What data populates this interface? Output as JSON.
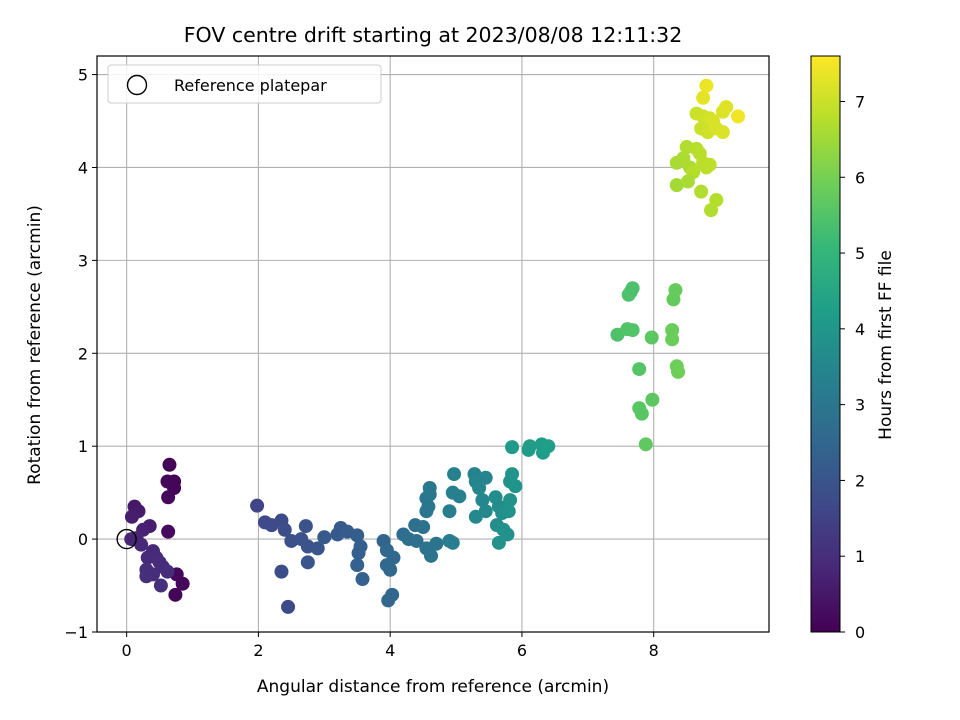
{
  "chart_data": {
    "type": "scatter",
    "title": "FOV centre drift starting at 2023/08/08 12:11:32",
    "xlabel": "Angular distance from reference (arcmin)",
    "ylabel": "Rotation from reference (arcmin)",
    "xlim": [
      -0.45,
      9.75
    ],
    "ylim": [
      -1.0,
      5.2
    ],
    "xticks": [
      0,
      2,
      4,
      6,
      8
    ],
    "yticks": [
      -1,
      0,
      1,
      2,
      3,
      4,
      5
    ],
    "xtick_labels": [
      "0",
      "2",
      "4",
      "6",
      "8"
    ],
    "ytick_labels": [
      "−1",
      "0",
      "1",
      "2",
      "3",
      "4",
      "5"
    ],
    "grid": true,
    "legend": {
      "placement": "top-left",
      "entries": [
        {
          "label": "Reference platepar",
          "marker": "hollow-circle"
        }
      ]
    },
    "reference_point": {
      "x": 0,
      "y": 0
    },
    "colorbar": {
      "label": "Hours from first FF file",
      "colormap": "viridis",
      "range": [
        0,
        7.6
      ],
      "ticks": [
        0,
        1,
        2,
        3,
        4,
        5,
        6,
        7
      ],
      "tick_labels": [
        "0",
        "1",
        "2",
        "3",
        "4",
        "5",
        "6",
        "7"
      ]
    },
    "points": [
      {
        "x": 0.65,
        "y": 0.8,
        "c": 0.05
      },
      {
        "x": 0.72,
        "y": 0.62,
        "c": 0.05
      },
      {
        "x": 0.62,
        "y": 0.62,
        "c": 0.1
      },
      {
        "x": 0.72,
        "y": 0.55,
        "c": 0.1
      },
      {
        "x": 0.63,
        "y": 0.45,
        "c": 0.15
      },
      {
        "x": 0.85,
        "y": -0.48,
        "c": 0.1
      },
      {
        "x": 0.76,
        "y": -0.38,
        "c": 0.15
      },
      {
        "x": 0.74,
        "y": -0.6,
        "c": 0.1
      },
      {
        "x": 0.63,
        "y": 0.08,
        "c": 0.2
      },
      {
        "x": 0.12,
        "y": 0.35,
        "c": 0.5
      },
      {
        "x": 0.18,
        "y": 0.3,
        "c": 0.55
      },
      {
        "x": 0.08,
        "y": 0.24,
        "c": 0.6
      },
      {
        "x": 0.35,
        "y": 0.14,
        "c": 0.6
      },
      {
        "x": 0.25,
        "y": 0.1,
        "c": 0.7
      },
      {
        "x": 0.07,
        "y": 0.0,
        "c": 0.8
      },
      {
        "x": 0.15,
        "y": 0.01,
        "c": 0.8
      },
      {
        "x": 0.22,
        "y": -0.06,
        "c": 0.85
      },
      {
        "x": 0.4,
        "y": -0.13,
        "c": 0.85
      },
      {
        "x": 0.32,
        "y": -0.2,
        "c": 0.9
      },
      {
        "x": 0.45,
        "y": -0.2,
        "c": 0.9
      },
      {
        "x": 0.5,
        "y": -0.25,
        "c": 0.95
      },
      {
        "x": 0.55,
        "y": -0.3,
        "c": 0.95
      },
      {
        "x": 0.3,
        "y": -0.33,
        "c": 1.0
      },
      {
        "x": 0.4,
        "y": -0.38,
        "c": 1.0
      },
      {
        "x": 0.62,
        "y": -0.35,
        "c": 1.0
      },
      {
        "x": 0.3,
        "y": -0.4,
        "c": 1.05
      },
      {
        "x": 0.52,
        "y": -0.5,
        "c": 1.05
      },
      {
        "x": 1.98,
        "y": 0.36,
        "c": 1.6
      },
      {
        "x": 2.1,
        "y": 0.18,
        "c": 1.7
      },
      {
        "x": 2.2,
        "y": 0.15,
        "c": 1.7
      },
      {
        "x": 2.35,
        "y": 0.2,
        "c": 1.75
      },
      {
        "x": 2.4,
        "y": 0.1,
        "c": 1.8
      },
      {
        "x": 2.5,
        "y": -0.02,
        "c": 1.85
      },
      {
        "x": 2.65,
        "y": 0.0,
        "c": 1.9
      },
      {
        "x": 2.72,
        "y": 0.14,
        "c": 1.9
      },
      {
        "x": 2.75,
        "y": -0.08,
        "c": 1.95
      },
      {
        "x": 2.9,
        "y": -0.1,
        "c": 2.0
      },
      {
        "x": 2.75,
        "y": -0.25,
        "c": 2.0
      },
      {
        "x": 2.35,
        "y": -0.35,
        "c": 1.8
      },
      {
        "x": 2.45,
        "y": -0.73,
        "c": 1.75
      },
      {
        "x": 3.0,
        "y": 0.02,
        "c": 2.1
      },
      {
        "x": 3.2,
        "y": 0.05,
        "c": 2.15
      },
      {
        "x": 3.25,
        "y": 0.12,
        "c": 2.15
      },
      {
        "x": 3.35,
        "y": 0.08,
        "c": 2.2
      },
      {
        "x": 3.5,
        "y": 0.04,
        "c": 2.25
      },
      {
        "x": 3.55,
        "y": -0.08,
        "c": 2.3
      },
      {
        "x": 3.52,
        "y": -0.15,
        "c": 2.3
      },
      {
        "x": 3.5,
        "y": -0.28,
        "c": 2.35
      },
      {
        "x": 3.58,
        "y": -0.43,
        "c": 2.35
      },
      {
        "x": 3.9,
        "y": -0.02,
        "c": 2.45
      },
      {
        "x": 3.95,
        "y": -0.12,
        "c": 2.5
      },
      {
        "x": 4.05,
        "y": -0.2,
        "c": 2.5
      },
      {
        "x": 3.95,
        "y": -0.28,
        "c": 2.55
      },
      {
        "x": 4.0,
        "y": -0.33,
        "c": 2.55
      },
      {
        "x": 4.03,
        "y": -0.6,
        "c": 2.5
      },
      {
        "x": 3.97,
        "y": -0.66,
        "c": 2.5
      },
      {
        "x": 4.2,
        "y": 0.05,
        "c": 2.7
      },
      {
        "x": 4.28,
        "y": 0.0,
        "c": 2.75
      },
      {
        "x": 4.4,
        "y": -0.02,
        "c": 2.8
      },
      {
        "x": 4.38,
        "y": 0.15,
        "c": 2.8
      },
      {
        "x": 4.5,
        "y": 0.13,
        "c": 2.85
      },
      {
        "x": 4.55,
        "y": -0.1,
        "c": 2.85
      },
      {
        "x": 4.62,
        "y": -0.18,
        "c": 2.9
      },
      {
        "x": 4.7,
        "y": -0.05,
        "c": 2.9
      },
      {
        "x": 4.55,
        "y": 0.3,
        "c": 2.95
      },
      {
        "x": 4.58,
        "y": 0.35,
        "c": 3.0
      },
      {
        "x": 4.55,
        "y": 0.44,
        "c": 3.0
      },
      {
        "x": 4.6,
        "y": 0.55,
        "c": 3.05
      },
      {
        "x": 4.6,
        "y": 0.48,
        "c": 3.05
      },
      {
        "x": 4.9,
        "y": -0.02,
        "c": 3.2
      },
      {
        "x": 4.95,
        "y": -0.04,
        "c": 3.2
      },
      {
        "x": 4.9,
        "y": 0.3,
        "c": 3.25
      },
      {
        "x": 4.95,
        "y": 0.5,
        "c": 3.3
      },
      {
        "x": 5.05,
        "y": 0.46,
        "c": 3.3
      },
      {
        "x": 4.97,
        "y": 0.7,
        "c": 3.35
      },
      {
        "x": 5.28,
        "y": 0.7,
        "c": 3.4
      },
      {
        "x": 5.3,
        "y": 0.62,
        "c": 3.45
      },
      {
        "x": 5.45,
        "y": 0.66,
        "c": 3.45
      },
      {
        "x": 5.35,
        "y": 0.55,
        "c": 3.5
      },
      {
        "x": 5.4,
        "y": 0.42,
        "c": 3.5
      },
      {
        "x": 5.45,
        "y": 0.3,
        "c": 3.55
      },
      {
        "x": 5.3,
        "y": 0.24,
        "c": 3.55
      },
      {
        "x": 5.6,
        "y": 0.45,
        "c": 3.7
      },
      {
        "x": 5.65,
        "y": 0.35,
        "c": 3.7
      },
      {
        "x": 5.7,
        "y": 0.28,
        "c": 3.75
      },
      {
        "x": 5.62,
        "y": 0.15,
        "c": 3.75
      },
      {
        "x": 5.72,
        "y": 0.1,
        "c": 3.8
      },
      {
        "x": 5.78,
        "y": 0.05,
        "c": 3.8
      },
      {
        "x": 5.65,
        "y": -0.04,
        "c": 3.85
      },
      {
        "x": 5.82,
        "y": 0.42,
        "c": 3.85
      },
      {
        "x": 5.8,
        "y": 0.3,
        "c": 3.9
      },
      {
        "x": 5.82,
        "y": 0.62,
        "c": 3.9
      },
      {
        "x": 5.85,
        "y": 0.7,
        "c": 3.95
      },
      {
        "x": 5.9,
        "y": 0.57,
        "c": 3.95
      },
      {
        "x": 5.85,
        "y": 0.99,
        "c": 4.1
      },
      {
        "x": 6.1,
        "y": 0.96,
        "c": 4.15
      },
      {
        "x": 6.12,
        "y": 1.0,
        "c": 4.15
      },
      {
        "x": 6.3,
        "y": 1.02,
        "c": 4.2
      },
      {
        "x": 6.32,
        "y": 0.93,
        "c": 4.2
      },
      {
        "x": 6.4,
        "y": 1.0,
        "c": 4.25
      },
      {
        "x": 7.45,
        "y": 2.2,
        "c": 5.45
      },
      {
        "x": 7.6,
        "y": 2.26,
        "c": 5.5
      },
      {
        "x": 7.68,
        "y": 2.25,
        "c": 5.5
      },
      {
        "x": 7.62,
        "y": 2.63,
        "c": 5.45
      },
      {
        "x": 7.65,
        "y": 2.66,
        "c": 5.45
      },
      {
        "x": 7.68,
        "y": 2.7,
        "c": 5.4
      },
      {
        "x": 7.78,
        "y": 1.83,
        "c": 5.55
      },
      {
        "x": 7.78,
        "y": 1.41,
        "c": 5.6
      },
      {
        "x": 7.82,
        "y": 1.35,
        "c": 5.6
      },
      {
        "x": 7.98,
        "y": 1.5,
        "c": 5.65
      },
      {
        "x": 7.97,
        "y": 2.17,
        "c": 5.65
      },
      {
        "x": 7.88,
        "y": 1.02,
        "c": 5.7
      },
      {
        "x": 8.3,
        "y": 2.58,
        "c": 5.75
      },
      {
        "x": 8.33,
        "y": 2.68,
        "c": 5.8
      },
      {
        "x": 8.28,
        "y": 2.25,
        "c": 5.85
      },
      {
        "x": 8.28,
        "y": 2.15,
        "c": 5.85
      },
      {
        "x": 8.35,
        "y": 1.86,
        "c": 5.9
      },
      {
        "x": 8.37,
        "y": 1.8,
        "c": 5.9
      },
      {
        "x": 8.35,
        "y": 4.05,
        "c": 6.6
      },
      {
        "x": 8.45,
        "y": 4.1,
        "c": 6.65
      },
      {
        "x": 8.5,
        "y": 4.22,
        "c": 6.7
      },
      {
        "x": 8.55,
        "y": 4.0,
        "c": 6.65
      },
      {
        "x": 8.65,
        "y": 4.2,
        "c": 6.75
      },
      {
        "x": 8.7,
        "y": 4.15,
        "c": 6.8
      },
      {
        "x": 8.75,
        "y": 4.05,
        "c": 6.8
      },
      {
        "x": 8.6,
        "y": 3.95,
        "c": 6.75
      },
      {
        "x": 8.8,
        "y": 4.0,
        "c": 6.8
      },
      {
        "x": 8.85,
        "y": 4.03,
        "c": 6.85
      },
      {
        "x": 8.35,
        "y": 3.81,
        "c": 6.55
      },
      {
        "x": 8.52,
        "y": 3.85,
        "c": 6.6
      },
      {
        "x": 8.72,
        "y": 3.74,
        "c": 6.7
      },
      {
        "x": 8.87,
        "y": 3.54,
        "c": 6.7
      },
      {
        "x": 8.95,
        "y": 3.65,
        "c": 6.75
      },
      {
        "x": 8.65,
        "y": 4.58,
        "c": 7.0
      },
      {
        "x": 8.75,
        "y": 4.55,
        "c": 7.05
      },
      {
        "x": 8.8,
        "y": 4.48,
        "c": 7.1
      },
      {
        "x": 8.85,
        "y": 4.53,
        "c": 7.1
      },
      {
        "x": 8.9,
        "y": 4.5,
        "c": 7.15
      },
      {
        "x": 8.72,
        "y": 4.42,
        "c": 7.0
      },
      {
        "x": 8.82,
        "y": 4.38,
        "c": 7.05
      },
      {
        "x": 8.95,
        "y": 4.42,
        "c": 7.15
      },
      {
        "x": 9.05,
        "y": 4.6,
        "c": 7.2
      },
      {
        "x": 9.1,
        "y": 4.65,
        "c": 7.25
      },
      {
        "x": 9.05,
        "y": 4.38,
        "c": 7.2
      },
      {
        "x": 8.75,
        "y": 4.75,
        "c": 7.3
      },
      {
        "x": 8.8,
        "y": 4.88,
        "c": 7.4
      },
      {
        "x": 9.28,
        "y": 4.55,
        "c": 7.45
      }
    ]
  }
}
